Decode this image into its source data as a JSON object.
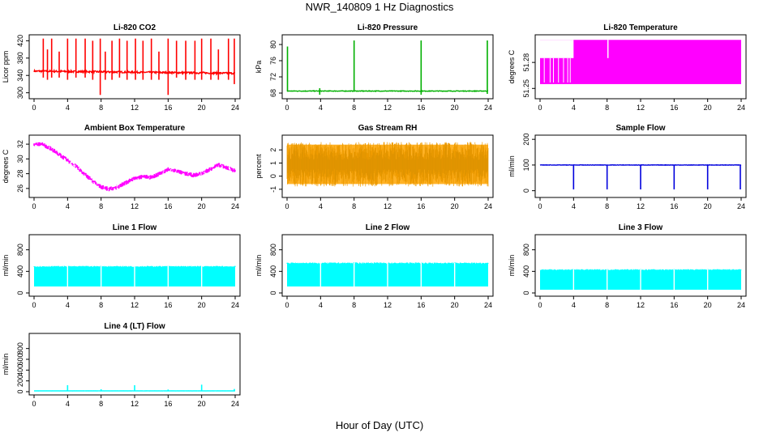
{
  "title": "NWR_140809 1 Hz Diagnostics",
  "xlabel": "Hour of Day (UTC)",
  "chart_data": [
    {
      "type": "line",
      "title": "Li-820 CO2",
      "ylabel": "Licor ppm",
      "xlim": [
        0,
        24
      ],
      "ylim": [
        290,
        430
      ],
      "x_ticks": [
        0,
        4,
        8,
        12,
        16,
        20,
        24
      ],
      "y_ticks": [
        300,
        340,
        380,
        420
      ],
      "color": "#ff0000",
      "baseline": [
        350,
        345
      ],
      "noise": 4,
      "spikes": [
        [
          1.1,
          425,
          335
        ],
        [
          1.6,
          400,
          330
        ],
        [
          2.1,
          425,
          335
        ],
        [
          3.0,
          395,
          335
        ],
        [
          4.0,
          425,
          330
        ],
        [
          5.0,
          425,
          335
        ],
        [
          6.1,
          425,
          335
        ],
        [
          7.0,
          420,
          330
        ],
        [
          7.9,
          425,
          295
        ],
        [
          8.5,
          395,
          330
        ],
        [
          9.3,
          420,
          330
        ],
        [
          10.2,
          425,
          335
        ],
        [
          11.1,
          420,
          330
        ],
        [
          12.1,
          425,
          330
        ],
        [
          13.0,
          420,
          330
        ],
        [
          14.0,
          425,
          330
        ],
        [
          14.9,
          395,
          330
        ],
        [
          16.0,
          425,
          295
        ],
        [
          17.0,
          420,
          335
        ],
        [
          18.1,
          420,
          330
        ],
        [
          19.2,
          420,
          330
        ],
        [
          20.0,
          425,
          330
        ],
        [
          21.1,
          425,
          330
        ],
        [
          22.0,
          400,
          330
        ],
        [
          23.2,
          425,
          330
        ],
        [
          23.9,
          425,
          320
        ]
      ],
      "color_name": "red"
    },
    {
      "type": "line",
      "title": "Li-820 Pressure",
      "ylabel": "kPa",
      "xlim": [
        0,
        24
      ],
      "ylim": [
        67,
        82
      ],
      "x_ticks": [
        0,
        4,
        8,
        12,
        16,
        20,
        24
      ],
      "y_ticks": [
        68,
        72,
        76,
        80
      ],
      "color": "#00b000",
      "baseline": [
        68.5,
        68.5
      ],
      "noise": 0.15,
      "spikes": [
        [
          0.05,
          79.5,
          68.5
        ],
        [
          3.9,
          69.2,
          67.6
        ],
        [
          8.0,
          81,
          68.5
        ],
        [
          16.0,
          81,
          67.6
        ],
        [
          23.9,
          81,
          67.8
        ]
      ],
      "color_name": "green"
    },
    {
      "type": "line",
      "title": "Li-820 Temperature",
      "ylabel": "degrees C",
      "xlim": [
        0,
        24
      ],
      "ylim": [
        51.24,
        51.31
      ],
      "x_ticks": [
        0,
        4,
        8,
        12,
        16,
        20,
        24
      ],
      "y_ticks": [
        51.25,
        51.28
      ],
      "color": "#ff00ff",
      "band": [
        51.255,
        51.306
      ],
      "band_start_upper": 51.285,
      "color_name": "magenta"
    },
    {
      "type": "line",
      "title": "Ambient Box Temperature",
      "ylabel": "degrees C",
      "xlim": [
        0,
        24
      ],
      "ylim": [
        25,
        33
      ],
      "x_ticks": [
        0,
        4,
        8,
        12,
        16,
        20,
        24
      ],
      "y_ticks": [
        26,
        28,
        30,
        32
      ],
      "color": "#ff00ff",
      "series_points": [
        [
          0,
          32
        ],
        [
          1,
          32
        ],
        [
          2,
          31.4
        ],
        [
          3,
          30.6
        ],
        [
          4,
          29.8
        ],
        [
          5,
          29
        ],
        [
          6,
          28
        ],
        [
          7,
          27
        ],
        [
          8,
          26.2
        ],
        [
          9,
          25.9
        ],
        [
          10,
          26.2
        ],
        [
          11,
          26.8
        ],
        [
          12,
          27.4
        ],
        [
          13,
          27.6
        ],
        [
          14,
          27.5
        ],
        [
          15,
          28
        ],
        [
          16,
          28.6
        ],
        [
          17,
          28.4
        ],
        [
          18,
          28
        ],
        [
          19,
          27.8
        ],
        [
          20,
          28
        ],
        [
          21,
          28.6
        ],
        [
          22,
          29.2
        ],
        [
          23,
          28.8
        ],
        [
          24,
          28.4
        ]
      ],
      "noise": 0.6,
      "color_name": "magenta"
    },
    {
      "type": "scatter",
      "title": "Gas Stream RH",
      "ylabel": "percent",
      "xlim": [
        0,
        24
      ],
      "ylim": [
        -1.5,
        3
      ],
      "x_ticks": [
        0,
        4,
        8,
        12,
        16,
        20,
        24
      ],
      "y_ticks": [
        -1,
        0,
        1,
        2
      ],
      "color": "#ffa500",
      "band": [
        -0.8,
        2.6
      ],
      "color_name": "orange"
    },
    {
      "type": "line",
      "title": "Sample Flow",
      "ylabel": "ml/min",
      "xlim": [
        0,
        24
      ],
      "ylim": [
        -20,
        210
      ],
      "x_ticks": [
        0,
        4,
        8,
        12,
        16,
        20,
        24
      ],
      "y_ticks": [
        0,
        100,
        200
      ],
      "color": "#0000dd",
      "baseline": [
        100,
        100
      ],
      "noise": 1.5,
      "spikes": [
        [
          4.0,
          100,
          5
        ],
        [
          8.0,
          100,
          5
        ],
        [
          12.0,
          100,
          5
        ],
        [
          16.0,
          100,
          5
        ],
        [
          20.0,
          100,
          5
        ],
        [
          23.9,
          100,
          5
        ]
      ],
      "color_name": "blue"
    },
    {
      "type": "area",
      "title": "Line 1 Flow",
      "ylabel": "ml/min",
      "xlim": [
        0,
        24
      ],
      "ylim": [
        -30,
        1050
      ],
      "x_ticks": [
        0,
        4,
        8,
        12,
        16,
        20,
        24
      ],
      "y_ticks": [
        0,
        400,
        800
      ],
      "color": "#00ffff",
      "band": [
        120,
        480
      ],
      "gaps": [
        4,
        8,
        12,
        16,
        20
      ],
      "color_name": "cyan"
    },
    {
      "type": "area",
      "title": "Line 2 Flow",
      "ylabel": "ml/min",
      "xlim": [
        0,
        24
      ],
      "ylim": [
        -30,
        1050
      ],
      "x_ticks": [
        0,
        4,
        8,
        12,
        16,
        20,
        24
      ],
      "y_ticks": [
        0,
        400,
        800
      ],
      "color": "#00ffff",
      "band": [
        120,
        540
      ],
      "gaps": [
        4,
        8,
        12,
        16,
        20
      ],
      "color_name": "cyan"
    },
    {
      "type": "area",
      "title": "Line 3 Flow",
      "ylabel": "ml/min",
      "xlim": [
        0,
        24
      ],
      "ylim": [
        -30,
        1050
      ],
      "x_ticks": [
        0,
        4,
        8,
        12,
        16,
        20,
        24
      ],
      "y_ticks": [
        0,
        400,
        800
      ],
      "color": "#00ffff",
      "band": [
        60,
        420
      ],
      "gaps": [
        4,
        8,
        12,
        16,
        20
      ],
      "color_name": "cyan"
    },
    {
      "type": "line",
      "title": "Line 4 (LT) Flow",
      "ylabel": "ml/min",
      "xlim": [
        0,
        24
      ],
      "ylim": [
        -30,
        1050
      ],
      "x_ticks": [
        0,
        4,
        8,
        12,
        16,
        20,
        24
      ],
      "y_ticks": [
        0,
        200,
        400,
        600,
        800
      ],
      "color": "#00ffff",
      "baseline": [
        15,
        15
      ],
      "noise": 2,
      "spikes": [
        [
          4.0,
          120,
          15
        ],
        [
          8.0,
          45,
          15
        ],
        [
          12.0,
          120,
          15
        ],
        [
          16.0,
          40,
          15
        ],
        [
          20.0,
          130,
          15
        ],
        [
          23.9,
          50,
          15
        ]
      ],
      "color_name": "cyan"
    }
  ]
}
